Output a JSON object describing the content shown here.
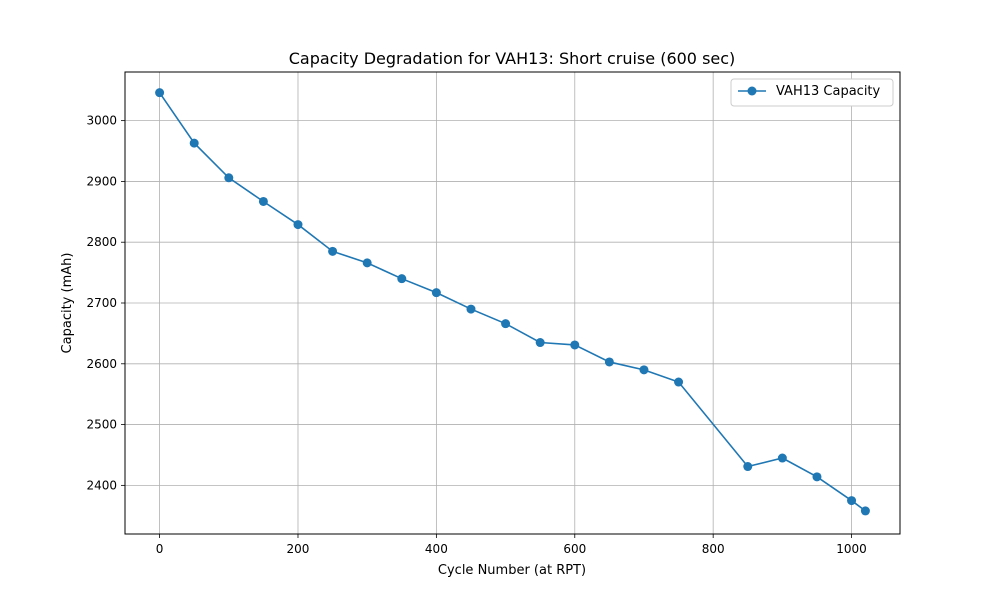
{
  "chart_data": {
    "type": "line",
    "title": "Capacity Degradation for VAH13: Short cruise (600 sec)",
    "xlabel": "Cycle Number (at RPT)",
    "ylabel": "Capacity (mAh)",
    "xlim": [
      -50,
      1070
    ],
    "ylim": [
      2320,
      3080
    ],
    "xticks": [
      0,
      200,
      400,
      600,
      800,
      1000
    ],
    "yticks": [
      2400,
      2500,
      2600,
      2700,
      2800,
      2900,
      3000
    ],
    "grid": true,
    "legend_position": "top-right",
    "color": "#1f77b4",
    "series": [
      {
        "name": "VAH13 Capacity",
        "x": [
          0,
          50,
          100,
          150,
          200,
          250,
          300,
          350,
          400,
          450,
          500,
          550,
          600,
          650,
          700,
          750,
          850,
          900,
          950,
          1000,
          1020
        ],
        "y": [
          3046,
          2963,
          2906,
          2867,
          2829,
          2785,
          2766,
          2740,
          2717,
          2690,
          2666,
          2635,
          2631,
          2603,
          2590,
          2570,
          2431,
          2445,
          2414,
          2375,
          2358
        ]
      }
    ]
  }
}
